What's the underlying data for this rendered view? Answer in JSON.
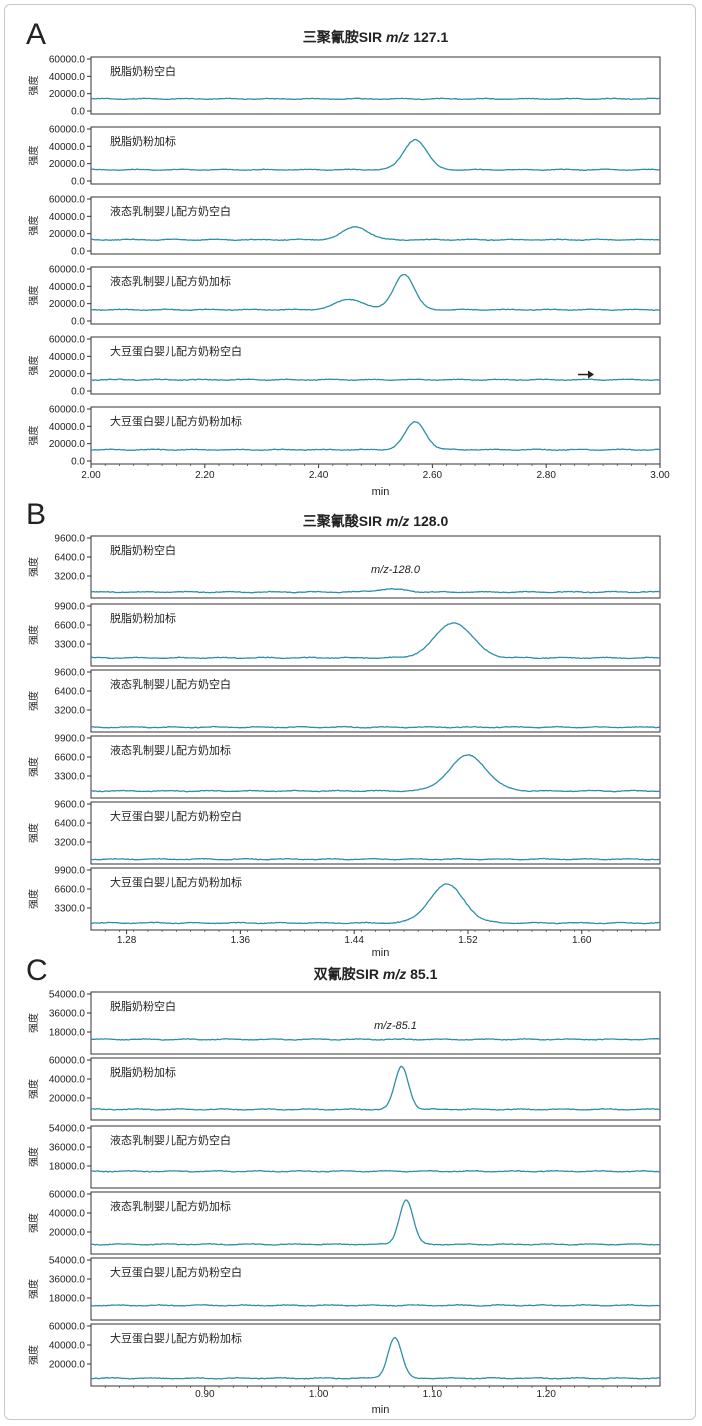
{
  "chart_data": [
    {
      "panel_letter": "A",
      "type": "line",
      "title_compound": "三聚氰胺SIR ",
      "title_mz": "m/z",
      "title_value": " 127.1",
      "xlabel": "min",
      "ylabel": "强度",
      "xlim": [
        2.0,
        3.0
      ],
      "xticks": [
        "2.00",
        "2.20",
        "2.40",
        "2.60",
        "2.80",
        "3.00"
      ],
      "xtick_values": [
        2.0,
        2.2,
        2.4,
        2.6,
        2.8,
        3.0
      ],
      "line_color": "#2d8fa8",
      "subplots": [
        {
          "label": "脱脂奶粉空白",
          "ylim": [
            0,
            60000
          ],
          "yticks": [
            "60000.0",
            "40000.0",
            "20000.0",
            "0.0"
          ],
          "ytick_values": [
            60000,
            40000,
            20000,
            0
          ],
          "baseline": 14000,
          "peaks": [],
          "annotation": "",
          "arrow": null
        },
        {
          "label": "脱脂奶粉加标",
          "ylim": [
            0,
            60000
          ],
          "yticks": [
            "60000.0",
            "40000.0",
            "20000.0",
            "0.0"
          ],
          "ytick_values": [
            60000,
            40000,
            20000,
            0
          ],
          "baseline": 13000,
          "peaks": [
            {
              "x": 2.57,
              "height": 35000,
              "width": 0.02
            }
          ],
          "annotation": "",
          "arrow": null
        },
        {
          "label": "液态乳制婴儿配方奶空白",
          "ylim": [
            0,
            60000
          ],
          "yticks": [
            "60000.0",
            "40000.0",
            "20000.0",
            "0.0"
          ],
          "ytick_values": [
            60000,
            40000,
            20000,
            0
          ],
          "baseline": 13000,
          "peaks": [
            {
              "x": 2.465,
              "height": 15000,
              "width": 0.022
            }
          ],
          "annotation": "",
          "arrow": null
        },
        {
          "label": "液态乳制婴儿配方奶加标",
          "ylim": [
            0,
            60000
          ],
          "yticks": [
            "60000.0",
            "40000.0",
            "20000.0",
            "0.0"
          ],
          "ytick_values": [
            60000,
            40000,
            20000,
            0
          ],
          "baseline": 13000,
          "peaks": [
            {
              "x": 2.455,
              "height": 12000,
              "width": 0.025
            },
            {
              "x": 2.55,
              "height": 41000,
              "width": 0.018
            }
          ],
          "annotation": "",
          "arrow": null
        },
        {
          "label": "大豆蛋白婴儿配方奶粉空白",
          "ylim": [
            0,
            60000
          ],
          "yticks": [
            "60000.0",
            "40000.0",
            "20000.0",
            "0.0"
          ],
          "ytick_values": [
            60000,
            40000,
            20000,
            0
          ],
          "baseline": 13000,
          "peaks": [],
          "annotation": "",
          "arrow": {
            "x": 2.87,
            "y": 19000
          }
        },
        {
          "label": "大豆蛋白婴儿配方奶粉加标",
          "ylim": [
            0,
            60000
          ],
          "yticks": [
            "60000.0",
            "40000.0",
            "20000.0",
            "0.0"
          ],
          "ytick_values": [
            60000,
            40000,
            20000,
            0
          ],
          "baseline": 13000,
          "peaks": [
            {
              "x": 2.57,
              "height": 32000,
              "width": 0.018
            }
          ],
          "annotation": "",
          "arrow": null
        }
      ]
    },
    {
      "panel_letter": "B",
      "type": "line",
      "title_compound": "三聚氰酸SIR ",
      "title_mz": "m/z",
      "title_value": " 128.0",
      "xlabel": "min",
      "ylabel": "强度",
      "xlim": [
        1.255,
        1.655
      ],
      "xticks": [
        "1.28",
        "1.36",
        "1.44",
        "1.52",
        "1.60"
      ],
      "xtick_values": [
        1.28,
        1.36,
        1.44,
        1.52,
        1.6
      ],
      "line_color": "#2d8fa8",
      "subplots": [
        {
          "label": "脱脂奶粉空白",
          "ylim": [
            0,
            9600
          ],
          "yticks": [
            "9600.0",
            "6400.0",
            "3200.0"
          ],
          "ytick_values": [
            9600,
            6400,
            3200
          ],
          "baseline": 500,
          "peaks": [
            {
              "x": 1.465,
              "height": 500,
              "width": 0.01
            }
          ],
          "annotation": "m/z-128.0",
          "arrow": null
        },
        {
          "label": "脱脂奶粉加标",
          "ylim": [
            0,
            9900
          ],
          "yticks": [
            "9900.0",
            "6600.0",
            "3300.0"
          ],
          "ytick_values": [
            9900,
            6600,
            3300
          ],
          "baseline": 900,
          "peaks": [
            {
              "x": 1.51,
              "height": 6100,
              "width": 0.013
            }
          ],
          "annotation": "",
          "arrow": null
        },
        {
          "label": "液态乳制婴儿配方奶空白",
          "ylim": [
            0,
            9600
          ],
          "yticks": [
            "9600.0",
            "6400.0",
            "3200.0"
          ],
          "ytick_values": [
            9600,
            6400,
            3200
          ],
          "baseline": 300,
          "peaks": [],
          "annotation": "",
          "arrow": null
        },
        {
          "label": "液态乳制婴儿配方奶加标",
          "ylim": [
            0,
            9900
          ],
          "yticks": [
            "9900.0",
            "6600.0",
            "3300.0"
          ],
          "ytick_values": [
            9900,
            6600,
            3300
          ],
          "baseline": 700,
          "peaks": [
            {
              "x": 1.52,
              "height": 6200,
              "width": 0.013
            }
          ],
          "annotation": "",
          "arrow": null
        },
        {
          "label": "大豆蛋白婴儿配方奶粉空白",
          "ylim": [
            0,
            9600
          ],
          "yticks": [
            "9600.0",
            "6400.0",
            "3200.0"
          ],
          "ytick_values": [
            9600,
            6400,
            3200
          ],
          "baseline": 300,
          "peaks": [],
          "annotation": "",
          "arrow": null
        },
        {
          "label": "大豆蛋白婴儿配方奶粉加标",
          "ylim": [
            0,
            9900
          ],
          "yticks": [
            "9900.0",
            "6600.0",
            "3300.0"
          ],
          "ytick_values": [
            9900,
            6600,
            3300
          ],
          "baseline": 700,
          "peaks": [
            {
              "x": 1.505,
              "height": 6700,
              "width": 0.012
            }
          ],
          "annotation": "",
          "arrow": null
        }
      ]
    },
    {
      "panel_letter": "C",
      "type": "line",
      "title_compound": "双氰胺SIR ",
      "title_mz": "m/z",
      "title_value": " 85.1",
      "xlabel": "min",
      "ylabel": "强度",
      "xlim": [
        0.8,
        1.3
      ],
      "xticks": [
        "0.90",
        "1.00",
        "1.10",
        "1.20"
      ],
      "xtick_values": [
        0.9,
        1.0,
        1.1,
        1.2
      ],
      "line_color": "#2d8fa8",
      "subplots": [
        {
          "label": "脱脂奶粉空白",
          "ylim": [
            0,
            54000
          ],
          "yticks": [
            "54000.0",
            "36000.0",
            "18000.0"
          ],
          "ytick_values": [
            54000,
            36000,
            18000
          ],
          "baseline": 11000,
          "peaks": [],
          "annotation": "m/z-85.1",
          "arrow": null
        },
        {
          "label": "脱脂奶粉加标",
          "ylim": [
            0,
            60000
          ],
          "yticks": [
            "60000.0",
            "40000.0",
            "20000.0"
          ],
          "ytick_values": [
            60000,
            40000,
            20000
          ],
          "baseline": 8000,
          "peaks": [
            {
              "x": 1.073,
              "height": 45000,
              "width": 0.006
            }
          ],
          "annotation": "",
          "arrow": null
        },
        {
          "label": "液态乳制婴儿配方奶空白",
          "ylim": [
            0,
            54000
          ],
          "yticks": [
            "54000.0",
            "36000.0",
            "18000.0"
          ],
          "ytick_values": [
            54000,
            36000,
            18000
          ],
          "baseline": 13000,
          "peaks": [],
          "annotation": "",
          "arrow": null
        },
        {
          "label": "液态乳制婴儿配方奶加标",
          "ylim": [
            0,
            60000
          ],
          "yticks": [
            "60000.0",
            "40000.0",
            "20000.0"
          ],
          "ytick_values": [
            60000,
            40000,
            20000
          ],
          "baseline": 7000,
          "peaks": [
            {
              "x": 1.077,
              "height": 47000,
              "width": 0.006
            }
          ],
          "annotation": "",
          "arrow": null
        },
        {
          "label": "大豆蛋白婴儿配方奶粉空白",
          "ylim": [
            0,
            54000
          ],
          "yticks": [
            "54000.0",
            "36000.0",
            "18000.0"
          ],
          "ytick_values": [
            54000,
            36000,
            18000
          ],
          "baseline": 11000,
          "peaks": [],
          "annotation": "",
          "arrow": null
        },
        {
          "label": "大豆蛋白婴儿配方奶粉加标",
          "ylim": [
            0,
            60000
          ],
          "yticks": [
            "60000.0",
            "40000.0",
            "20000.0"
          ],
          "ytick_values": [
            60000,
            40000,
            20000
          ],
          "baseline": 5000,
          "peaks": [
            {
              "x": 1.067,
              "height": 43000,
              "width": 0.006
            }
          ],
          "annotation": "",
          "arrow": null
        }
      ]
    }
  ]
}
